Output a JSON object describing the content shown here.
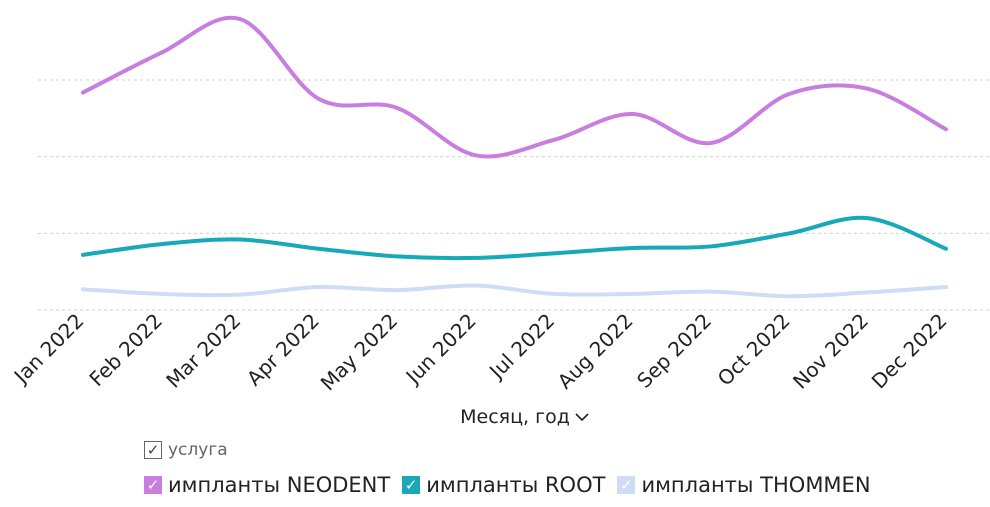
{
  "chart_data": {
    "type": "line",
    "x_title": "Месяц, год",
    "categories": [
      "Jan 2022",
      "Feb 2022",
      "Mar 2022",
      "Apr 2022",
      "May 2022",
      "Jun 2022",
      "Jul 2022",
      "Aug 2022",
      "Sep 2022",
      "Oct 2022",
      "Nov 2022",
      "Dec 2022"
    ],
    "ylim": [
      0,
      380
    ],
    "grid": true,
    "legend_title": "услуга",
    "legend_placement": "bottom",
    "series": [
      {
        "name": "импланты NEODENT",
        "color": "#c77ee0",
        "values": [
          284,
          336,
          380,
          276,
          264,
          202,
          222,
          256,
          218,
          282,
          289,
          236
        ]
      },
      {
        "name": "импланты ROOT",
        "color": "#17a9b8",
        "values": [
          72,
          86,
          92,
          80,
          70,
          68,
          74,
          81,
          83,
          100,
          120,
          80
        ]
      },
      {
        "name": "импланты THOMMEN",
        "color": "#cfdcf6",
        "values": [
          27,
          21,
          20,
          30,
          26,
          32,
          21,
          21,
          24,
          18,
          23,
          30
        ]
      }
    ]
  }
}
